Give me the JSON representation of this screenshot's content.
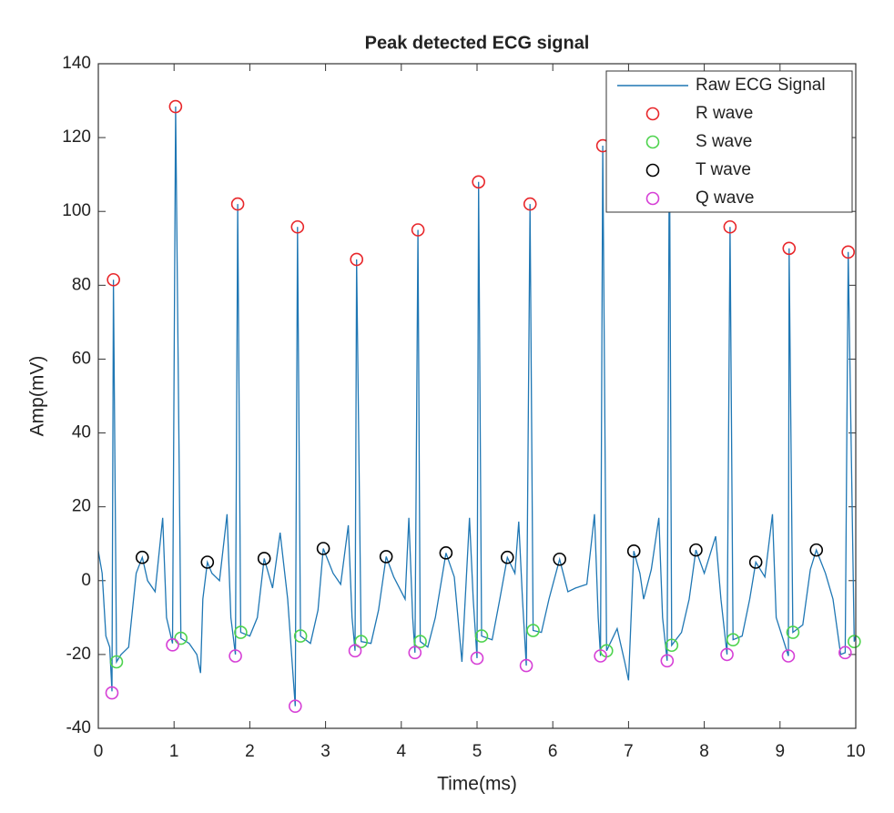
{
  "chart_data": {
    "type": "line",
    "title": "Peak detected ECG signal",
    "x_label": "Time(ms)",
    "y_label": "Amp(mV)",
    "xlim": [
      0,
      10
    ],
    "xticks": [
      0,
      1,
      2,
      3,
      4,
      5,
      6,
      7,
      8,
      9,
      10
    ],
    "ylim": [
      -40,
      140
    ],
    "yticks": [
      -40,
      -20,
      0,
      20,
      40,
      60,
      80,
      100,
      120,
      140
    ],
    "legend": "upper right",
    "series": [
      {
        "name": "Raw ECG Signal",
        "type": "line",
        "color": "#1f77b4",
        "x": [
          0,
          0.05,
          0.1,
          0.15,
          0.18,
          0.2,
          0.24,
          0.3,
          0.4,
          0.5,
          0.58,
          0.65,
          0.75,
          0.85,
          0.9,
          0.98,
          1.02,
          1.09,
          1.2,
          1.3,
          1.35,
          1.38,
          1.44,
          1.5,
          1.6,
          1.7,
          1.75,
          1.81,
          1.84,
          1.88,
          2.0,
          2.1,
          2.19,
          2.3,
          2.4,
          2.5,
          2.6,
          2.63,
          2.67,
          2.8,
          2.9,
          2.97,
          3.1,
          3.2,
          3.3,
          3.35,
          3.39,
          3.41,
          3.47,
          3.6,
          3.7,
          3.8,
          3.9,
          4.05,
          4.1,
          4.15,
          4.18,
          4.22,
          4.25,
          4.35,
          4.45,
          4.59,
          4.7,
          4.8,
          4.9,
          4.95,
          5.0,
          5.02,
          5.06,
          5.2,
          5.3,
          5.4,
          5.5,
          5.55,
          5.6,
          5.65,
          5.7,
          5.74,
          5.85,
          5.95,
          6.09,
          6.2,
          6.3,
          6.45,
          6.55,
          6.6,
          6.63,
          6.66,
          6.71,
          6.85,
          6.95,
          7.0,
          7.07,
          7.15,
          7.2,
          7.3,
          7.4,
          7.45,
          7.51,
          7.54,
          7.57,
          7.7,
          7.8,
          7.89,
          8.0,
          8.15,
          8.22,
          8.3,
          8.34,
          8.38,
          8.5,
          8.6,
          8.68,
          8.8,
          8.9,
          8.95,
          9.11,
          9.12,
          9.17,
          9.3,
          9.4,
          9.48,
          9.6,
          9.7,
          9.8,
          9.86,
          9.9,
          9.98,
          10
        ],
        "values": [
          8,
          2,
          -15,
          -18,
          -30,
          81.5,
          -22,
          -20,
          -18,
          2,
          6.3,
          0,
          -3,
          17,
          -10,
          -17,
          128.4,
          -15.6,
          -17,
          -20,
          -25,
          -5,
          5,
          2,
          0,
          18,
          -10,
          -20,
          102,
          -14,
          -15,
          -10,
          6,
          -2,
          13,
          -5,
          -34,
          95.8,
          -15,
          -17,
          -8,
          8.7,
          2,
          -1,
          15,
          -10,
          -19,
          87,
          -16.5,
          -17,
          -8,
          6.5,
          1,
          -5,
          17,
          -10,
          -19.5,
          95,
          -16.5,
          -18,
          -10,
          7.5,
          1,
          -22,
          17,
          -5,
          -21,
          108,
          -15,
          -16,
          -5,
          6.3,
          2,
          16,
          -5,
          -23,
          102,
          -13.5,
          -14,
          -5,
          5.8,
          -3,
          -2,
          -1,
          18,
          -10,
          -20.4,
          117.8,
          -19,
          -13,
          -22,
          -27,
          8,
          2,
          -5,
          3,
          17,
          -10,
          -21.7,
          123,
          -17.5,
          -14,
          -5,
          8.3,
          2,
          12,
          -5,
          -20,
          95.8,
          -16,
          -15,
          -5,
          5,
          1,
          18,
          -10,
          -20.4,
          90,
          -14,
          -12,
          3,
          8.3,
          2,
          -5,
          -20,
          -19.5,
          89,
          -16.5,
          -15
        ]
      },
      {
        "name": "R wave",
        "type": "scatter",
        "color": "#e8262a",
        "x": [
          0.2,
          1.02,
          1.84,
          2.63,
          3.41,
          4.22,
          5.02,
          5.7,
          6.66,
          8.34,
          9.12,
          9.9
        ],
        "values": [
          81.5,
          128.4,
          102,
          95.8,
          87,
          95,
          108,
          102,
          117.8,
          95.8,
          90,
          89
        ]
      },
      {
        "name": "S wave",
        "type": "scatter",
        "color": "#4dd34d",
        "x": [
          0.24,
          1.09,
          1.88,
          2.67,
          3.47,
          4.25,
          5.06,
          5.74,
          6.71,
          7.57,
          8.38,
          9.17,
          9.98
        ],
        "values": [
          -22,
          -15.6,
          -14,
          -15,
          -16.5,
          -16.5,
          -15,
          -13.5,
          -19,
          -17.5,
          -16,
          -14,
          -16.5
        ]
      },
      {
        "name": "T wave",
        "type": "scatter",
        "color": "#000000",
        "x": [
          0.58,
          1.44,
          2.19,
          2.97,
          3.8,
          4.59,
          5.4,
          6.09,
          7.07,
          7.89,
          8.68,
          9.48
        ],
        "values": [
          6.3,
          5,
          6,
          8.7,
          6.5,
          7.5,
          6.3,
          5.8,
          8,
          8.3,
          5,
          8.3
        ]
      },
      {
        "name": "Q wave",
        "type": "scatter",
        "color": "#d63fd6",
        "x": [
          0.18,
          0.98,
          1.81,
          2.6,
          3.39,
          4.18,
          5.0,
          5.65,
          6.63,
          7.51,
          8.3,
          9.11,
          9.86
        ],
        "values": [
          -30.4,
          -17.4,
          -20.4,
          -34,
          -19,
          -19.5,
          -21,
          -23,
          -20.4,
          -21.7,
          -20,
          -20.4,
          -19.5
        ]
      }
    ]
  }
}
